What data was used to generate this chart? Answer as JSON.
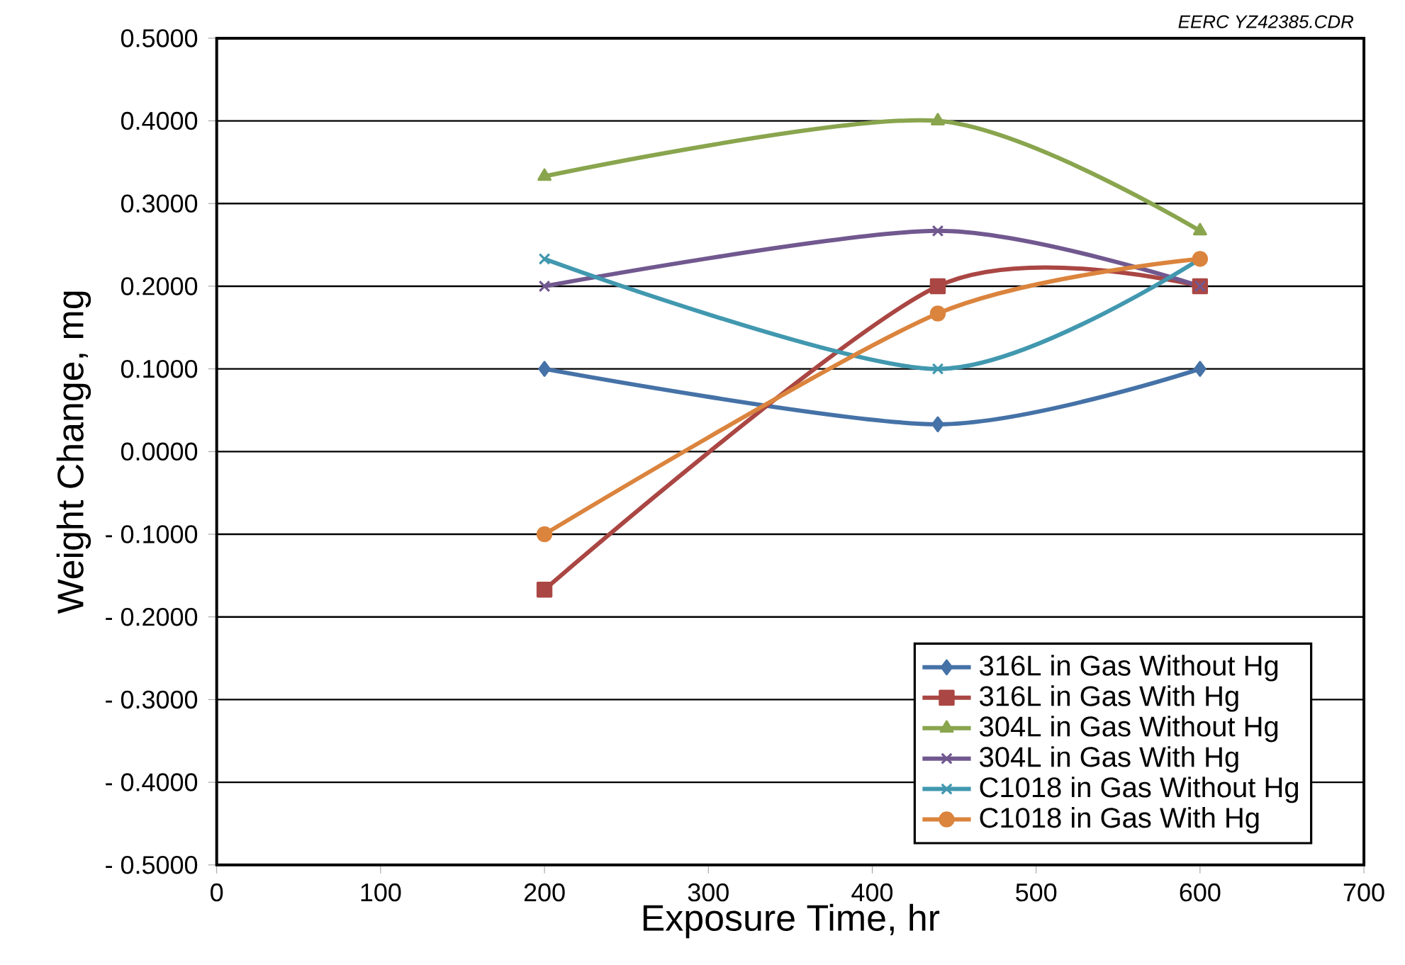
{
  "chart_data": {
    "type": "line",
    "xlabel": "Exposure Time, hr",
    "ylabel": "Weight Change, mg",
    "annotations": [
      "EERC YZ42385.CDR"
    ],
    "x": [
      200,
      440,
      600
    ],
    "series": [
      {
        "name": "316L in Gas Without Hg",
        "color": "#4572a7",
        "marker": "diamond",
        "values": [
          0.1,
          0.033,
          0.1
        ]
      },
      {
        "name": "316L in Gas With Hg",
        "color": "#aa4643",
        "marker": "square",
        "values": [
          -0.167,
          0.2,
          0.2
        ]
      },
      {
        "name": "304L in Gas Without Hg",
        "color": "#89a54e",
        "marker": "triangle",
        "values": [
          0.333,
          0.4,
          0.267
        ]
      },
      {
        "name": "304L in Gas With Hg",
        "color": "#71588f",
        "marker": "cross",
        "values": [
          0.2,
          0.267,
          0.2
        ]
      },
      {
        "name": "C1018 in Gas Without Hg",
        "color": "#4198af",
        "marker": "cross",
        "values": [
          0.233,
          0.1,
          0.233
        ]
      },
      {
        "name": "C1018 in Gas With Hg",
        "color": "#db843d",
        "marker": "circle",
        "values": [
          -0.1,
          0.167,
          0.233
        ]
      }
    ],
    "xlim": [
      0,
      700
    ],
    "xticks": [
      0,
      100,
      200,
      300,
      400,
      500,
      600,
      700
    ],
    "ylim": [
      -0.5,
      0.5
    ],
    "yticks": [
      {
        "value": -0.5,
        "label": "- 0.5000"
      },
      {
        "value": -0.4,
        "label": "- 0.4000"
      },
      {
        "value": -0.3,
        "label": "- 0.3000"
      },
      {
        "value": -0.2,
        "label": "- 0.2000"
      },
      {
        "value": -0.1,
        "label": "- 0.1000"
      },
      {
        "value": 0,
        "label": "0.0000"
      },
      {
        "value": 0.1,
        "label": "0.1000"
      },
      {
        "value": 0.2,
        "label": "0.2000"
      },
      {
        "value": 0.3,
        "label": "0.3000"
      },
      {
        "value": 0.4,
        "label": "0.4000"
      },
      {
        "value": 0.5,
        "label": "0.5000"
      }
    ],
    "grid": "y",
    "legend": "bottom right",
    "line_style": "solid"
  }
}
